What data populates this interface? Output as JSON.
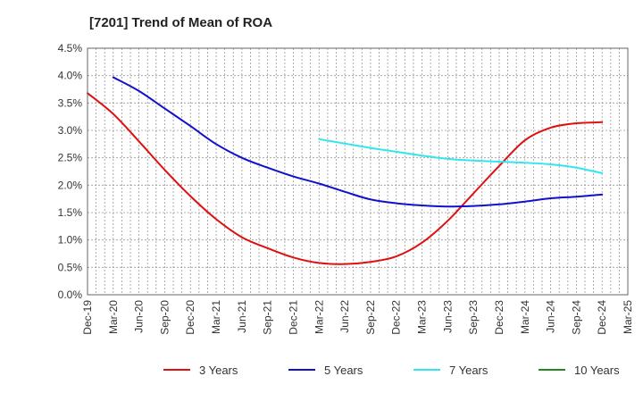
{
  "chart_data": {
    "type": "line",
    "title": "[7201]  Trend of Mean of ROA",
    "xlabel": "",
    "ylabel": "",
    "ylim": [
      0,
      4.5
    ],
    "yticks": [
      "0.0%",
      "0.5%",
      "1.0%",
      "1.5%",
      "2.0%",
      "2.5%",
      "3.0%",
      "3.5%",
      "4.0%",
      "4.5%"
    ],
    "categories": [
      "Dec-19",
      "Mar-20",
      "Jun-20",
      "Sep-20",
      "Dec-20",
      "Mar-21",
      "Jun-21",
      "Sep-21",
      "Dec-21",
      "Mar-22",
      "Jun-22",
      "Sep-22",
      "Dec-22",
      "Mar-23",
      "Jun-23",
      "Sep-23",
      "Dec-23",
      "Mar-24",
      "Jun-24",
      "Sep-24",
      "Dec-24",
      "Mar-25"
    ],
    "grid": true,
    "legend_position": "bottom",
    "series": [
      {
        "name": "3 Years",
        "color": "#dd1111",
        "values": [
          3.68,
          3.3,
          2.8,
          2.28,
          1.8,
          1.38,
          1.05,
          0.85,
          0.68,
          0.58,
          0.56,
          0.6,
          0.7,
          0.95,
          1.35,
          1.85,
          2.35,
          2.82,
          3.05,
          3.13,
          3.15,
          null
        ]
      },
      {
        "name": "5 Years",
        "color": "#1111cc",
        "values": [
          null,
          3.97,
          3.72,
          3.4,
          3.08,
          2.75,
          2.5,
          2.32,
          2.16,
          2.03,
          1.88,
          1.74,
          1.67,
          1.63,
          1.61,
          1.62,
          1.65,
          1.7,
          1.76,
          1.79,
          1.83,
          null
        ]
      },
      {
        "name": "7 Years",
        "color": "#33e5ee",
        "values": [
          null,
          null,
          null,
          null,
          null,
          null,
          null,
          null,
          null,
          2.84,
          2.76,
          2.68,
          2.61,
          2.54,
          2.48,
          2.45,
          2.43,
          2.41,
          2.38,
          2.32,
          2.22,
          null
        ]
      },
      {
        "name": "10 Years",
        "color": "#228822",
        "values": [
          null,
          null,
          null,
          null,
          null,
          null,
          null,
          null,
          null,
          null,
          null,
          null,
          null,
          null,
          null,
          null,
          null,
          null,
          null,
          null,
          null,
          null
        ]
      }
    ]
  }
}
